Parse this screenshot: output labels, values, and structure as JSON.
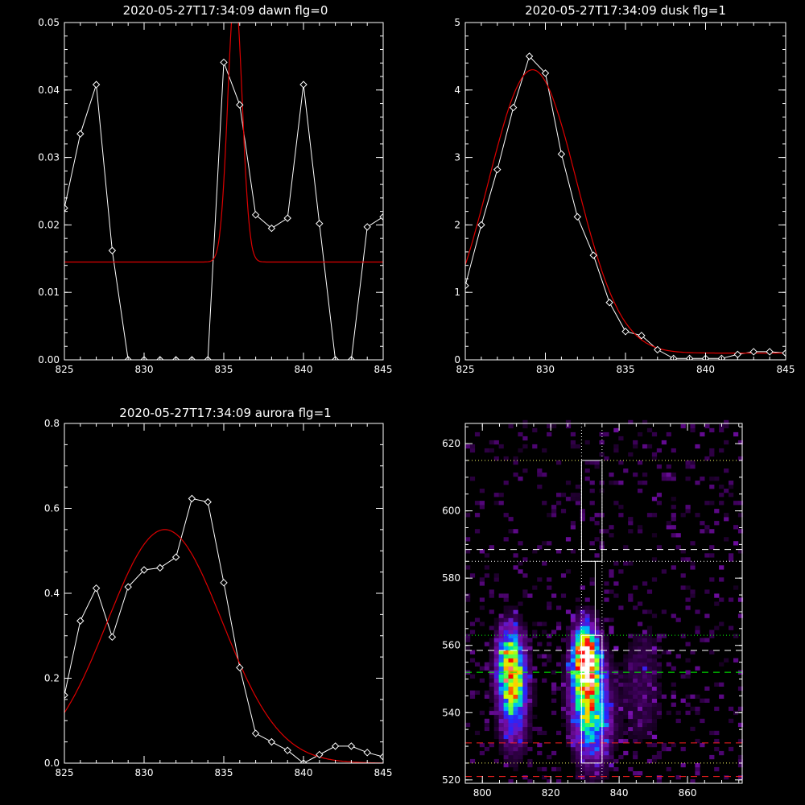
{
  "colors": {
    "background": "#000000",
    "axis": "#ffffff",
    "data_line": "#ffffff",
    "fit_line": "#dd0000",
    "dotted_line": "#ffff66",
    "green_line": "#00ff00",
    "red_dash": "#ff2020"
  },
  "chart_data": [
    {
      "type": "line",
      "title": "2020-05-27T17:34:09 dawn flg=0",
      "xlim": [
        825,
        845
      ],
      "ylim": [
        0,
        0.05
      ],
      "xticks": [
        825,
        830,
        835,
        840,
        845
      ],
      "xtick_labels": [
        "825",
        "830",
        "835",
        "840",
        "845"
      ],
      "yticks": [
        0,
        0.01,
        0.02,
        0.03,
        0.04,
        0.05
      ],
      "ytick_labels": [
        "0.00",
        "0.01",
        "0.02",
        "0.03",
        "0.04",
        "0.05"
      ],
      "grid": false,
      "series": [
        {
          "kind": "data",
          "marker": "diamond",
          "x": [
            825,
            826,
            827,
            828,
            829,
            830,
            831,
            832,
            833,
            834,
            835,
            836,
            837,
            838,
            839,
            840,
            841,
            842,
            843,
            844,
            845
          ],
          "y": [
            0.0225,
            0.0335,
            0.0408,
            0.0162,
            0,
            0,
            0,
            0,
            0,
            0,
            0.0441,
            0.0378,
            0.0215,
            0.0195,
            0.021,
            0.0408,
            0.0202,
            0,
            0,
            0.0197,
            0.0212
          ]
        },
        {
          "kind": "fit",
          "model": "gaussian",
          "baseline": 0.0145,
          "amplitude": 0.04,
          "center": 835.7,
          "sigma": 0.45
        }
      ]
    },
    {
      "type": "line",
      "title": "2020-05-27T17:34:09 dusk flg=1",
      "xlim": [
        825,
        845
      ],
      "ylim": [
        0,
        5
      ],
      "xticks": [
        825,
        830,
        835,
        840,
        845
      ],
      "xtick_labels": [
        "825",
        "830",
        "835",
        "840",
        "845"
      ],
      "yticks": [
        0,
        1,
        2,
        3,
        4,
        5
      ],
      "ytick_labels": [
        "0",
        "1",
        "2",
        "3",
        "4",
        "5"
      ],
      "grid": false,
      "series": [
        {
          "kind": "data",
          "marker": "diamond",
          "x": [
            825,
            826,
            827,
            828,
            829,
            830,
            831,
            832,
            833,
            834,
            835,
            836,
            837,
            838,
            839,
            840,
            841,
            842,
            843,
            844,
            845
          ],
          "y": [
            1.1,
            2.0,
            2.82,
            3.74,
            4.5,
            4.25,
            3.05,
            2.12,
            1.55,
            0.85,
            0.42,
            0.36,
            0.15,
            0.02,
            0.02,
            0.02,
            0.02,
            0.08,
            0.12,
            0.12,
            0.1
          ]
        },
        {
          "kind": "fit",
          "model": "gaussian",
          "baseline": 0.1,
          "amplitude": 4.2,
          "center": 829.2,
          "sigma": 2.75
        }
      ]
    },
    {
      "type": "line",
      "title": "2020-05-27T17:34:09 aurora flg=1",
      "xlim": [
        825,
        845
      ],
      "ylim": [
        0,
        0.8
      ],
      "xticks": [
        825,
        830,
        835,
        840,
        845
      ],
      "xtick_labels": [
        "825",
        "830",
        "835",
        "840",
        "845"
      ],
      "yticks": [
        0,
        0.2,
        0.4,
        0.6,
        0.8
      ],
      "ytick_labels": [
        "0.0",
        "0.2",
        "0.4",
        "0.6",
        "0.8"
      ],
      "grid": false,
      "series": [
        {
          "kind": "data",
          "marker": "diamond",
          "x": [
            825,
            826,
            827,
            828,
            829,
            830,
            831,
            832,
            833,
            834,
            835,
            836,
            837,
            838,
            839,
            840,
            841,
            842,
            843,
            844,
            845
          ],
          "y": [
            0.16,
            0.335,
            0.412,
            0.297,
            0.415,
            0.455,
            0.46,
            0.485,
            0.623,
            0.615,
            0.425,
            0.225,
            0.07,
            0.05,
            0.03,
            0.0,
            0.02,
            0.04,
            0.04,
            0.025,
            0.015
          ]
        },
        {
          "kind": "fit",
          "model": "gaussian",
          "baseline": 0,
          "amplitude": 0.55,
          "center": 831.3,
          "sigma": 3.6
        }
      ]
    },
    {
      "type": "heatmap",
      "title": "",
      "xlim": [
        795,
        876
      ],
      "ylim": [
        519,
        626
      ],
      "xticks": [
        800,
        820,
        840,
        860
      ],
      "xtick_labels": [
        "800",
        "820",
        "840",
        "860"
      ],
      "yticks": [
        520,
        540,
        560,
        580,
        600,
        620
      ],
      "ytick_labels": [
        "520",
        "540",
        "560",
        "580",
        "600",
        "620"
      ],
      "grid": false,
      "blobs": [
        {
          "x": 807.5,
          "y": 554,
          "sx": 2.6,
          "sy": 7,
          "peak": 0.72
        },
        {
          "x": 808.5,
          "y": 542,
          "sx": 2.8,
          "sy": 9,
          "peak": 0.42
        },
        {
          "x": 829.5,
          "y": 556,
          "sx": 2.4,
          "sy": 6,
          "peak": 1.0
        },
        {
          "x": 829.5,
          "y": 543,
          "sx": 3.0,
          "sy": 10,
          "peak": 0.55
        },
        {
          "x": 833.5,
          "y": 538,
          "sx": 3.0,
          "sy": 10,
          "peak": 0.28
        },
        {
          "x": 846,
          "y": 548,
          "sx": 4.0,
          "sy": 12,
          "peak": 0.12
        }
      ],
      "colormap_stops": [
        "#000000",
        "#3b0057",
        "#7a10b0",
        "#2525ff",
        "#00b4ff",
        "#00ff80",
        "#ccff00",
        "#ffcc00",
        "#ff0000",
        "#ffffff"
      ],
      "box_outline": [
        [
          829,
          615
        ],
        [
          835,
          615
        ],
        [
          835,
          585
        ],
        [
          833,
          585
        ],
        [
          833,
          563
        ],
        [
          835,
          563
        ],
        [
          835,
          525
        ],
        [
          829,
          525
        ],
        [
          829,
          563
        ],
        [
          833,
          563
        ],
        [
          833,
          585
        ],
        [
          829,
          585
        ],
        [
          829,
          615
        ]
      ],
      "vertical_dotted_x": [
        829,
        835
      ],
      "horizontal_lines": [
        {
          "y": 615,
          "style": "dotted",
          "color": "dotted_line"
        },
        {
          "y": 588.5,
          "style": "dashed",
          "color": "axis"
        },
        {
          "y": 585,
          "style": "dotted",
          "color": "axis"
        },
        {
          "y": 563,
          "style": "dotted",
          "color": "green_line"
        },
        {
          "y": 558.5,
          "style": "dashed",
          "color": "axis"
        },
        {
          "y": 552,
          "style": "dashed",
          "color": "green_line"
        },
        {
          "y": 531,
          "style": "dashed",
          "color": "red_dash"
        },
        {
          "y": 525,
          "style": "dotted",
          "color": "dotted_line"
        },
        {
          "y": 521,
          "style": "dashed",
          "color": "red_dash"
        }
      ]
    }
  ]
}
